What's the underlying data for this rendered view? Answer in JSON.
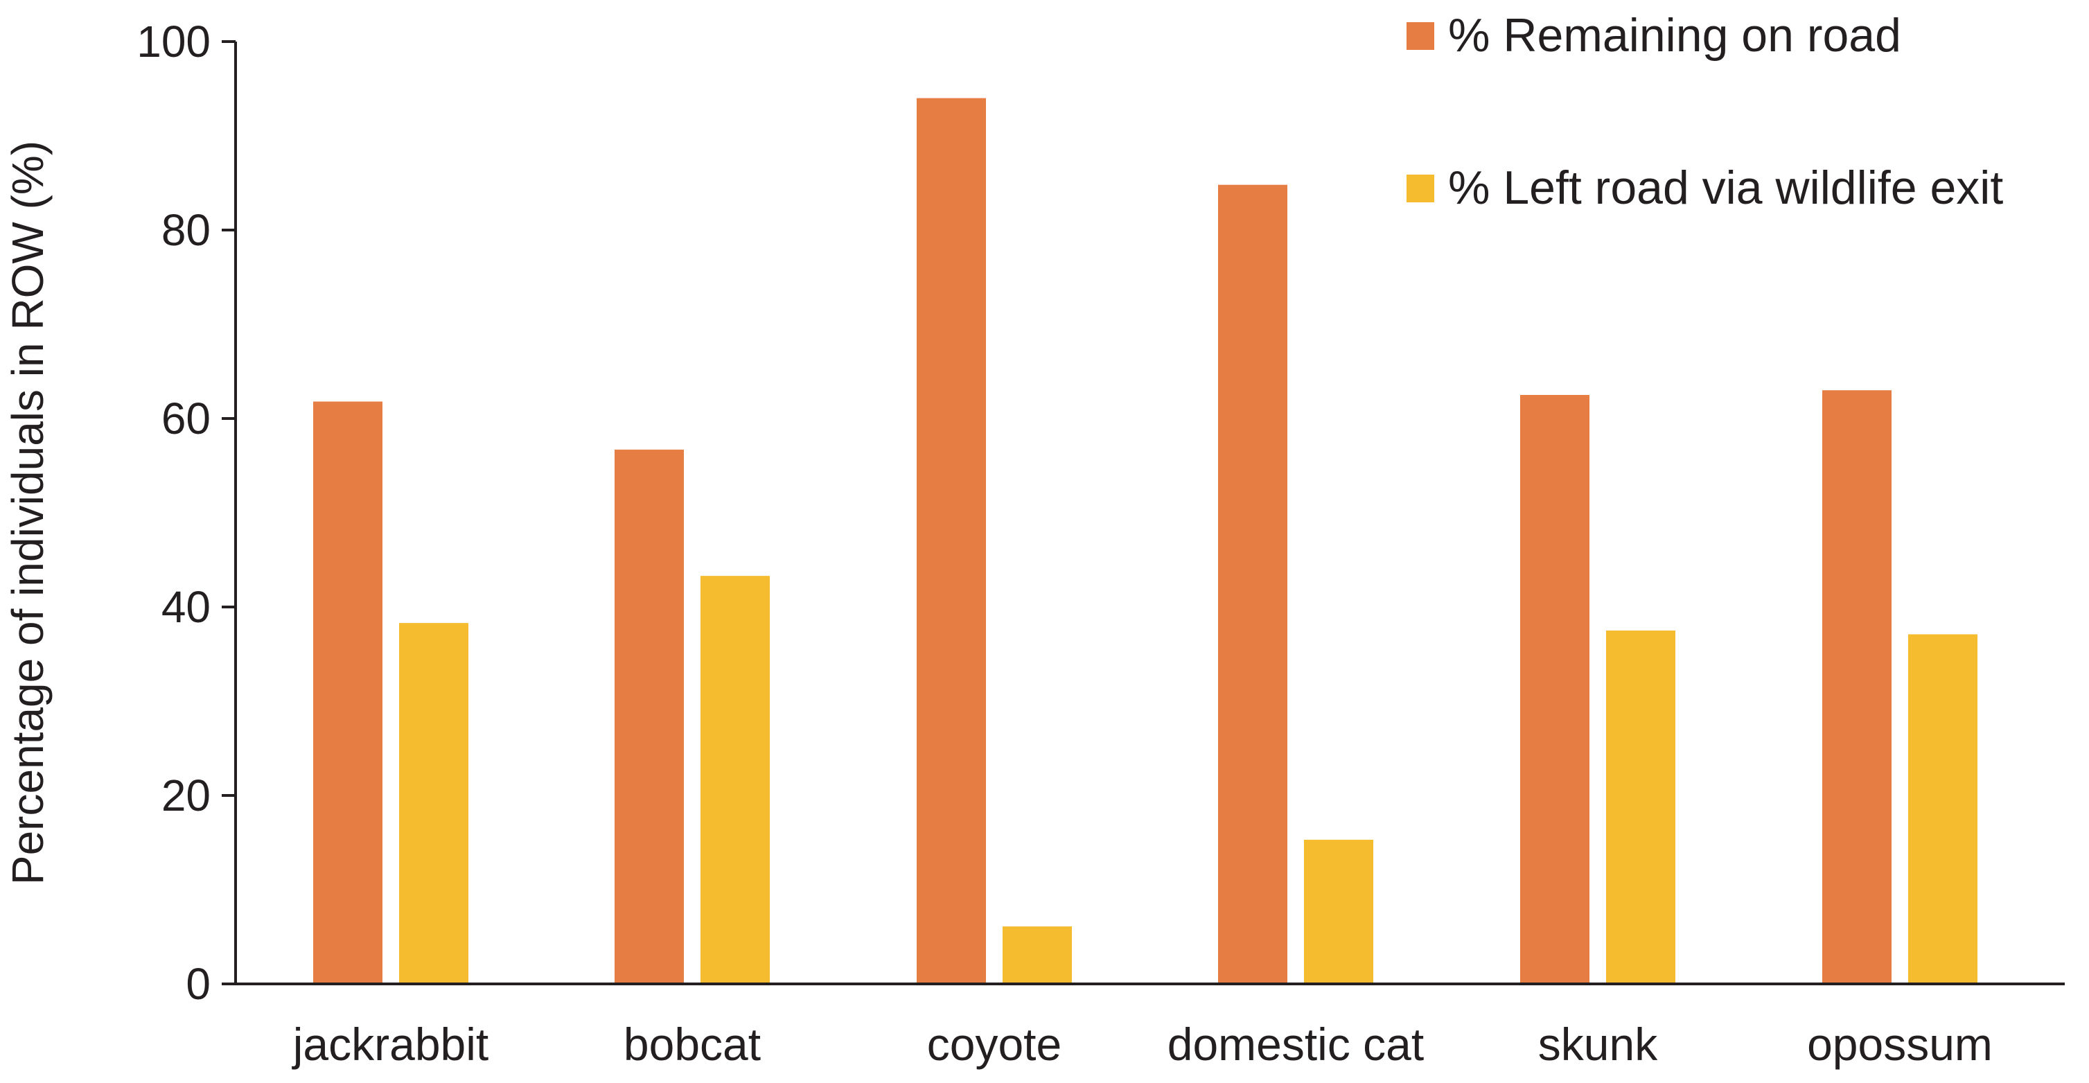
{
  "chart_data": {
    "type": "bar",
    "title": "",
    "xlabel": "",
    "ylabel": "Percentage of individuals in ROW (%)",
    "ylim": [
      0,
      100
    ],
    "yticks": [
      0,
      20,
      40,
      60,
      80,
      100
    ],
    "categories": [
      "jackrabbit",
      "bobcat",
      "coyote",
      "domestic cat",
      "skunk",
      "opossum"
    ],
    "series": [
      {
        "name": "% Remaining on road",
        "color": "#e67e43",
        "values": [
          61.8,
          56.7,
          94.0,
          84.8,
          62.5,
          63.0
        ]
      },
      {
        "name": "% Left road via wildlife exit",
        "color": "#f5bc30",
        "values": [
          38.3,
          43.3,
          6.1,
          15.3,
          37.5,
          37.1
        ]
      }
    ],
    "grid": false,
    "legend_position": "top-right"
  }
}
